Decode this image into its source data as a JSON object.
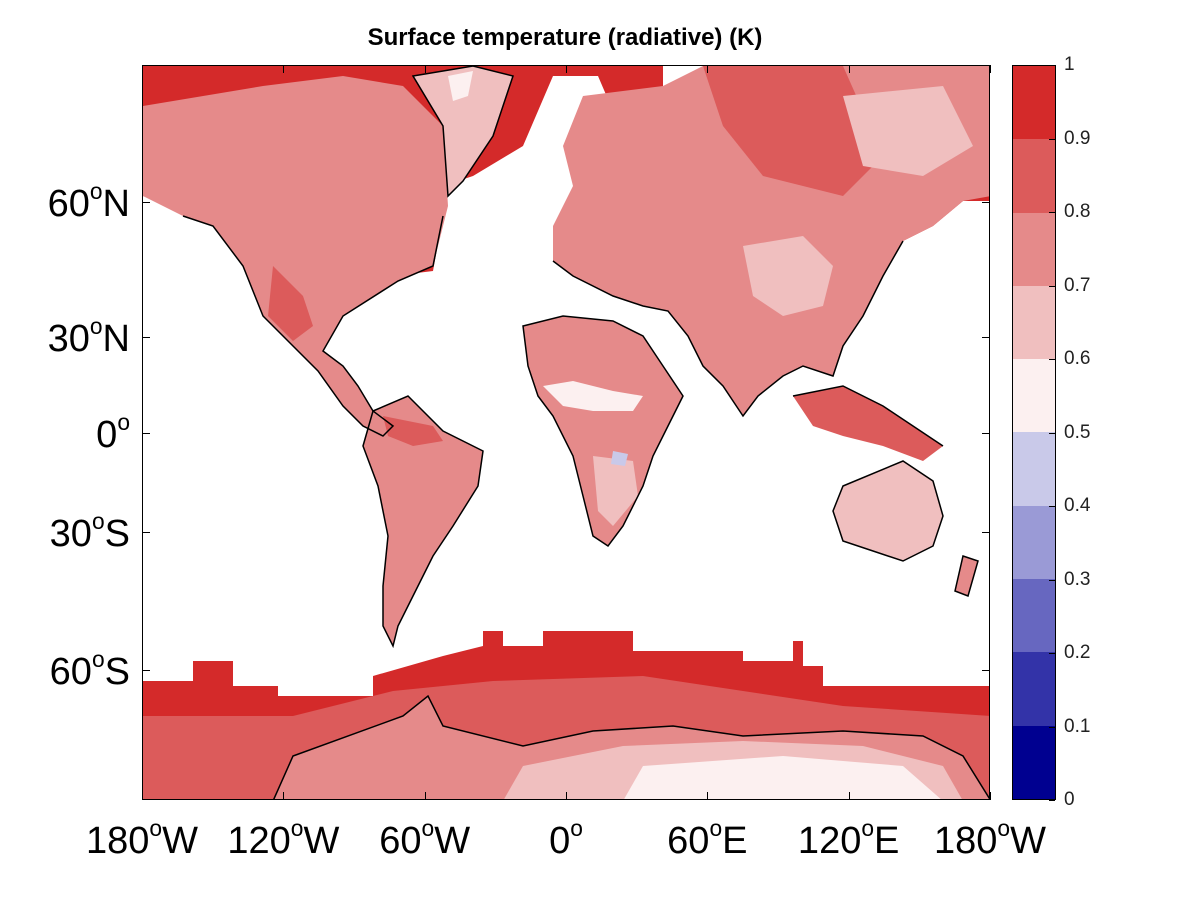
{
  "title": "Surface temperature (radiative) (K)",
  "y_axis": {
    "ticks": [
      {
        "text": "60",
        "hemisphere": "N",
        "lat": 60
      },
      {
        "text": "30",
        "hemisphere": "N",
        "lat": 30
      },
      {
        "text": "0",
        "hemisphere": "",
        "lat": 0
      },
      {
        "text": "30",
        "hemisphere": "S",
        "lat": -30
      },
      {
        "text": "60",
        "hemisphere": "S",
        "lat": -60
      }
    ]
  },
  "x_axis": {
    "ticks": [
      {
        "text": "180",
        "hemisphere": "W",
        "lon": -180
      },
      {
        "text": "120",
        "hemisphere": "W",
        "lon": -120
      },
      {
        "text": "60",
        "hemisphere": "W",
        "lon": -60
      },
      {
        "text": "0",
        "hemisphere": "",
        "lon": 0
      },
      {
        "text": "60",
        "hemisphere": "E",
        "lon": 60
      },
      {
        "text": "120",
        "hemisphere": "E",
        "lon": 120
      },
      {
        "text": "180",
        "hemisphere": "W",
        "lon": 180
      }
    ]
  },
  "colorbar": {
    "labels": [
      "1",
      "0.9",
      "0.8",
      "0.7",
      "0.6",
      "0.5",
      "0.4",
      "0.3",
      "0.2",
      "0.1",
      "0"
    ],
    "levels": [
      {
        "from": 0.9,
        "to": 1.0,
        "color": "#d42a2a"
      },
      {
        "from": 0.8,
        "to": 0.9,
        "color": "#dc5b5b"
      },
      {
        "from": 0.7,
        "to": 0.8,
        "color": "#e58a8a"
      },
      {
        "from": 0.6,
        "to": 0.7,
        "color": "#f0bfbf"
      },
      {
        "from": 0.5,
        "to": 0.6,
        "color": "#fcf0f0"
      },
      {
        "from": 0.4,
        "to": 0.5,
        "color": "#c9c9e9"
      },
      {
        "from": 0.3,
        "to": 0.4,
        "color": "#9a9ad6"
      },
      {
        "from": 0.2,
        "to": 0.3,
        "color": "#6767c0"
      },
      {
        "from": 0.1,
        "to": 0.2,
        "color": "#3333a8"
      },
      {
        "from": 0.0,
        "to": 0.1,
        "color": "#000090"
      }
    ]
  },
  "colors": {
    "level_09_10": "#d42a2a",
    "level_08_09": "#dc5b5b",
    "level_07_08": "#e58a8a",
    "level_06_07": "#f0bfbf",
    "level_05_06": "#fcf0f0",
    "level_04_05": "#c9c9e9",
    "coastline": "#000000"
  },
  "projection": "Mercator"
}
